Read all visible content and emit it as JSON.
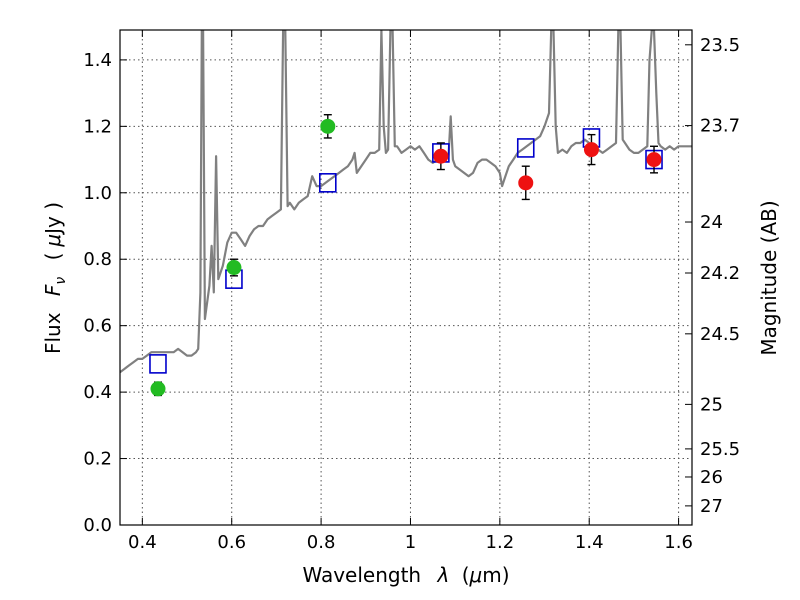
{
  "chart_data": {
    "type": "scatter",
    "xlabel_text": "Wavelength",
    "xlabel_math": "λ",
    "xlabel_unit_open": "(",
    "xlabel_unit_math": "μ",
    "xlabel_unit_rest": "m)",
    "ylabel_text": "Flux",
    "ylabel_math_F": "F",
    "ylabel_math_sub": "ν",
    "ylabel_unit_open": "(",
    "ylabel_unit_math": "μ",
    "ylabel_unit_rest": "Jy )",
    "y2label": "Magnitude (AB)",
    "xlim": [
      0.35,
      1.63
    ],
    "ylim": [
      0.0,
      1.49
    ],
    "grid": true,
    "x_ticks": [
      {
        "v": 0.4,
        "label": "0.4"
      },
      {
        "v": 0.6,
        "label": "0.6"
      },
      {
        "v": 0.8,
        "label": "0.8"
      },
      {
        "v": 1.0,
        "label": "1"
      },
      {
        "v": 1.2,
        "label": "1.2"
      },
      {
        "v": 1.4,
        "label": "1.4"
      },
      {
        "v": 1.6,
        "label": "1.6"
      }
    ],
    "y_ticks": [
      {
        "v": 0.0,
        "label": "0.0"
      },
      {
        "v": 0.2,
        "label": "0.2"
      },
      {
        "v": 0.4,
        "label": "0.4"
      },
      {
        "v": 0.6,
        "label": "0.6"
      },
      {
        "v": 0.8,
        "label": "0.8"
      },
      {
        "v": 1.0,
        "label": "1.0"
      },
      {
        "v": 1.2,
        "label": "1.2"
      },
      {
        "v": 1.4,
        "label": "1.4"
      }
    ],
    "y2_ticks": [
      {
        "mag": 23.5,
        "label": "23.5"
      },
      {
        "mag": 23.7,
        "label": "23.7"
      },
      {
        "mag": 24,
        "label": "24"
      },
      {
        "mag": 24.2,
        "label": "24.2"
      },
      {
        "mag": 24.5,
        "label": "24.5"
      },
      {
        "mag": 25,
        "label": "25"
      },
      {
        "mag": 25.5,
        "label": "25.5"
      },
      {
        "mag": 26,
        "label": "26"
      },
      {
        "mag": 27,
        "label": "27"
      }
    ],
    "colors": {
      "spectrum": "#808080",
      "model_square": "#0000cc",
      "green": "#22bb22",
      "red": "#ee1111",
      "errorbar": "#000000",
      "grid": "#555555"
    },
    "spectrum": [
      [
        0.35,
        0.46
      ],
      [
        0.36,
        0.47
      ],
      [
        0.37,
        0.48
      ],
      [
        0.38,
        0.49
      ],
      [
        0.39,
        0.5
      ],
      [
        0.4,
        0.5
      ],
      [
        0.41,
        0.51
      ],
      [
        0.42,
        0.52
      ],
      [
        0.43,
        0.52
      ],
      [
        0.44,
        0.52
      ],
      [
        0.45,
        0.52
      ],
      [
        0.46,
        0.52
      ],
      [
        0.47,
        0.52
      ],
      [
        0.48,
        0.53
      ],
      [
        0.49,
        0.52
      ],
      [
        0.5,
        0.51
      ],
      [
        0.51,
        0.51
      ],
      [
        0.52,
        0.52
      ],
      [
        0.525,
        0.53
      ],
      [
        0.53,
        0.7
      ],
      [
        0.533,
        1.49
      ],
      [
        0.536,
        1.49
      ],
      [
        0.54,
        0.62
      ],
      [
        0.55,
        0.72
      ],
      [
        0.555,
        0.84
      ],
      [
        0.56,
        0.7
      ],
      [
        0.565,
        1.11
      ],
      [
        0.57,
        0.74
      ],
      [
        0.58,
        0.78
      ],
      [
        0.59,
        0.85
      ],
      [
        0.6,
        0.88
      ],
      [
        0.61,
        0.88
      ],
      [
        0.62,
        0.86
      ],
      [
        0.63,
        0.84
      ],
      [
        0.64,
        0.87
      ],
      [
        0.65,
        0.89
      ],
      [
        0.66,
        0.9
      ],
      [
        0.67,
        0.9
      ],
      [
        0.68,
        0.92
      ],
      [
        0.69,
        0.93
      ],
      [
        0.7,
        0.94
      ],
      [
        0.71,
        0.95
      ],
      [
        0.715,
        1.49
      ],
      [
        0.72,
        1.49
      ],
      [
        0.725,
        0.96
      ],
      [
        0.73,
        0.97
      ],
      [
        0.74,
        0.95
      ],
      [
        0.75,
        0.97
      ],
      [
        0.76,
        0.98
      ],
      [
        0.77,
        0.99
      ],
      [
        0.78,
        1.05
      ],
      [
        0.79,
        1.02
      ],
      [
        0.8,
        1.02
      ],
      [
        0.81,
        1.03
      ],
      [
        0.82,
        1.04
      ],
      [
        0.83,
        1.05
      ],
      [
        0.84,
        1.06
      ],
      [
        0.85,
        1.07
      ],
      [
        0.86,
        1.08
      ],
      [
        0.87,
        1.1
      ],
      [
        0.875,
        1.12
      ],
      [
        0.88,
        1.06
      ],
      [
        0.89,
        1.08
      ],
      [
        0.9,
        1.1
      ],
      [
        0.91,
        1.12
      ],
      [
        0.92,
        1.12
      ],
      [
        0.93,
        1.13
      ],
      [
        0.935,
        1.49
      ],
      [
        0.94,
        1.2
      ],
      [
        0.945,
        1.12
      ],
      [
        0.95,
        1.13
      ],
      [
        0.955,
        1.49
      ],
      [
        0.96,
        1.49
      ],
      [
        0.965,
        1.14
      ],
      [
        0.97,
        1.14
      ],
      [
        0.98,
        1.12
      ],
      [
        0.99,
        1.13
      ],
      [
        1.0,
        1.14
      ],
      [
        1.01,
        1.13
      ],
      [
        1.02,
        1.14
      ],
      [
        1.03,
        1.12
      ],
      [
        1.04,
        1.1
      ],
      [
        1.05,
        1.09
      ],
      [
        1.06,
        1.1
      ],
      [
        1.07,
        1.12
      ],
      [
        1.08,
        1.11
      ],
      [
        1.085,
        1.11
      ],
      [
        1.09,
        1.23
      ],
      [
        1.095,
        1.1
      ],
      [
        1.1,
        1.08
      ],
      [
        1.11,
        1.07
      ],
      [
        1.12,
        1.06
      ],
      [
        1.13,
        1.05
      ],
      [
        1.14,
        1.06
      ],
      [
        1.15,
        1.09
      ],
      [
        1.16,
        1.1
      ],
      [
        1.17,
        1.1
      ],
      [
        1.18,
        1.09
      ],
      [
        1.19,
        1.08
      ],
      [
        1.2,
        1.06
      ],
      [
        1.205,
        1.02
      ],
      [
        1.21,
        1.04
      ],
      [
        1.22,
        1.08
      ],
      [
        1.23,
        1.1
      ],
      [
        1.24,
        1.12
      ],
      [
        1.25,
        1.13
      ],
      [
        1.26,
        1.14
      ],
      [
        1.27,
        1.15
      ],
      [
        1.28,
        1.16
      ],
      [
        1.29,
        1.17
      ],
      [
        1.3,
        1.2
      ],
      [
        1.31,
        1.24
      ],
      [
        1.315,
        1.49
      ],
      [
        1.32,
        1.49
      ],
      [
        1.325,
        1.2
      ],
      [
        1.33,
        1.12
      ],
      [
        1.34,
        1.13
      ],
      [
        1.35,
        1.12
      ],
      [
        1.36,
        1.14
      ],
      [
        1.37,
        1.15
      ],
      [
        1.38,
        1.15
      ],
      [
        1.39,
        1.16
      ],
      [
        1.4,
        1.15
      ],
      [
        1.41,
        1.14
      ],
      [
        1.42,
        1.13
      ],
      [
        1.43,
        1.12
      ],
      [
        1.44,
        1.13
      ],
      [
        1.45,
        1.14
      ],
      [
        1.46,
        1.15
      ],
      [
        1.465,
        1.49
      ],
      [
        1.47,
        1.49
      ],
      [
        1.475,
        1.16
      ],
      [
        1.48,
        1.15
      ],
      [
        1.49,
        1.13
      ],
      [
        1.5,
        1.12
      ],
      [
        1.51,
        1.12
      ],
      [
        1.52,
        1.13
      ],
      [
        1.53,
        1.14
      ],
      [
        1.535,
        1.4
      ],
      [
        1.54,
        1.49
      ],
      [
        1.545,
        1.49
      ],
      [
        1.55,
        1.3
      ],
      [
        1.555,
        1.15
      ],
      [
        1.56,
        1.14
      ],
      [
        1.57,
        1.13
      ],
      [
        1.58,
        1.14
      ],
      [
        1.59,
        1.13
      ],
      [
        1.6,
        1.14
      ],
      [
        1.61,
        1.14
      ],
      [
        1.62,
        1.14
      ],
      [
        1.63,
        1.14
      ]
    ],
    "model_points": [
      {
        "x": 0.435,
        "y": 0.485
      },
      {
        "x": 0.605,
        "y": 0.74
      },
      {
        "x": 0.815,
        "y": 1.03
      },
      {
        "x": 1.068,
        "y": 1.12
      },
      {
        "x": 1.258,
        "y": 1.135
      },
      {
        "x": 1.405,
        "y": 1.165
      },
      {
        "x": 1.545,
        "y": 1.1
      }
    ],
    "observed_green": [
      {
        "x": 0.435,
        "y": 0.41,
        "err": 0.02
      },
      {
        "x": 0.605,
        "y": 0.775,
        "err": 0.025
      },
      {
        "x": 0.815,
        "y": 1.2,
        "err": 0.035
      }
    ],
    "observed_red": [
      {
        "x": 1.068,
        "y": 1.11,
        "err": 0.04
      },
      {
        "x": 1.258,
        "y": 1.03,
        "err": 0.05
      },
      {
        "x": 1.405,
        "y": 1.13,
        "err": 0.045
      },
      {
        "x": 1.545,
        "y": 1.1,
        "err": 0.04
      }
    ]
  }
}
